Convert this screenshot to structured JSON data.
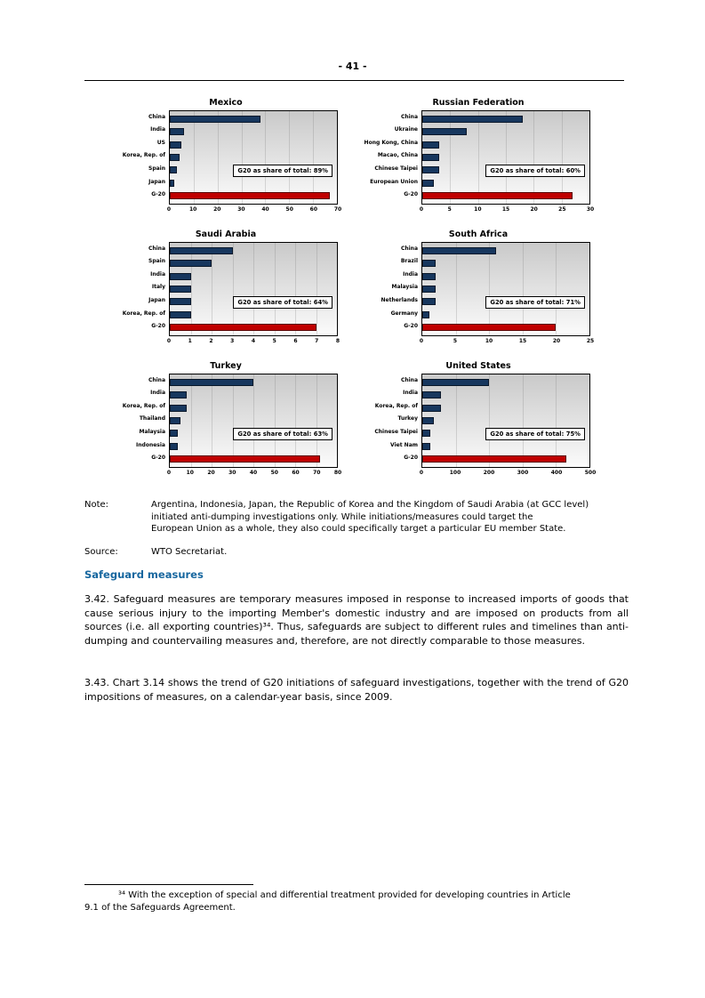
{
  "page": {
    "number_label": "- 41 -"
  },
  "note": {
    "label": "Note:",
    "lines": [
      "Argentina, Indonesia, Japan, the Republic of Korea and the Kingdom of Saudi Arabia (at GCC level)",
      "initiated anti-dumping investigations only. While initiations/measures could target the",
      "European Union as a whole, they also could specifically target a particular EU member State."
    ]
  },
  "source": {
    "label": "Source:",
    "text": "WTO Secretariat."
  },
  "section": {
    "heading": "Safeguard measures",
    "heading_color": "#17679F",
    "paragraphs": [
      "3.42.  Safeguard measures are temporary measures imposed in response to increased imports of goods that cause serious injury to the importing Member's domestic industry and are imposed on products from all sources (i.e. all exporting countries)³⁴. Thus, safeguards are subject to different rules and timelines than anti-dumping and countervailing measures and, therefore, are not directly comparable to those measures.",
      "3.43.  Chart 3.14 shows the trend of G20 initiations of safeguard investigations, together with the trend of G20 impositions of measures, on a calendar-year basis, since 2009."
    ]
  },
  "footnote": {
    "lines": [
      "³⁴ With the exception of special and differential treatment provided for developing countries in Article",
      "9.1 of the Safeguards Agreement."
    ]
  },
  "chart_style": {
    "bar_color": "#17375E",
    "g20_color": "#C00000",
    "g20_label": "G-20",
    "plot_gradient_top": "#C9C9C9",
    "plot_gradient_bottom": "#FBFBFB"
  },
  "chart_data": [
    {
      "type": "bar",
      "orientation": "horizontal",
      "title": "Mexico",
      "categories": [
        "China",
        "India",
        "US",
        "Korea, Rep. of",
        "Spain",
        "Japan",
        "G-20"
      ],
      "values": [
        38,
        6,
        5,
        4,
        3,
        2,
        67
      ],
      "xlim": [
        0,
        70
      ],
      "xticks": [
        0,
        10,
        20,
        30,
        40,
        50,
        60,
        70
      ],
      "annotation": "G20 as share of total: 89%"
    },
    {
      "type": "bar",
      "orientation": "horizontal",
      "title": "Russian Federation",
      "categories": [
        "China",
        "Ukraine",
        "Hong Kong, China",
        "Macao, China",
        "Chinese Taipei",
        "European Union",
        "G-20"
      ],
      "values": [
        18,
        8,
        3,
        3,
        3,
        2,
        27
      ],
      "xlim": [
        0,
        30
      ],
      "xticks": [
        0,
        5,
        10,
        15,
        20,
        25,
        30
      ],
      "annotation": "G20 as share of total: 60%"
    },
    {
      "type": "bar",
      "orientation": "horizontal",
      "title": "Saudi Arabia",
      "categories": [
        "China",
        "Spain",
        "India",
        "Italy",
        "Japan",
        "Korea, Rep. of",
        "G-20"
      ],
      "values": [
        3,
        2,
        1,
        1,
        1,
        1,
        7
      ],
      "xlim": [
        0,
        8
      ],
      "xticks": [
        0,
        1,
        2,
        3,
        4,
        5,
        6,
        7,
        8
      ],
      "annotation": "G20 as share of total: 64%"
    },
    {
      "type": "bar",
      "orientation": "horizontal",
      "title": "South Africa",
      "categories": [
        "China",
        "Brazil",
        "India",
        "Malaysia",
        "Netherlands",
        "Germany",
        "G-20"
      ],
      "values": [
        11,
        2,
        2,
        2,
        2,
        1,
        20
      ],
      "xlim": [
        0,
        25
      ],
      "xticks": [
        0,
        5,
        10,
        15,
        20,
        25
      ],
      "annotation": "G20 as share of total: 71%"
    },
    {
      "type": "bar",
      "orientation": "horizontal",
      "title": "Turkey",
      "categories": [
        "China",
        "India",
        "Korea, Rep. of",
        "Thailand",
        "Malaysia",
        "Indonesia",
        "G-20"
      ],
      "values": [
        40,
        8,
        8,
        5,
        4,
        4,
        72
      ],
      "xlim": [
        0,
        80
      ],
      "xticks": [
        0,
        10,
        20,
        30,
        40,
        50,
        60,
        70,
        80
      ],
      "annotation": "G20 as share of total: 63%"
    },
    {
      "type": "bar",
      "orientation": "horizontal",
      "title": "United States",
      "categories": [
        "China",
        "India",
        "Korea, Rep. of",
        "Turkey",
        "Chinese Taipei",
        "Viet Nam",
        "G-20"
      ],
      "values": [
        200,
        55,
        55,
        35,
        25,
        25,
        430
      ],
      "xlim": [
        0,
        500
      ],
      "xticks": [
        0,
        100,
        200,
        300,
        400,
        500
      ],
      "annotation": "G20 as share of total: 75%"
    }
  ]
}
